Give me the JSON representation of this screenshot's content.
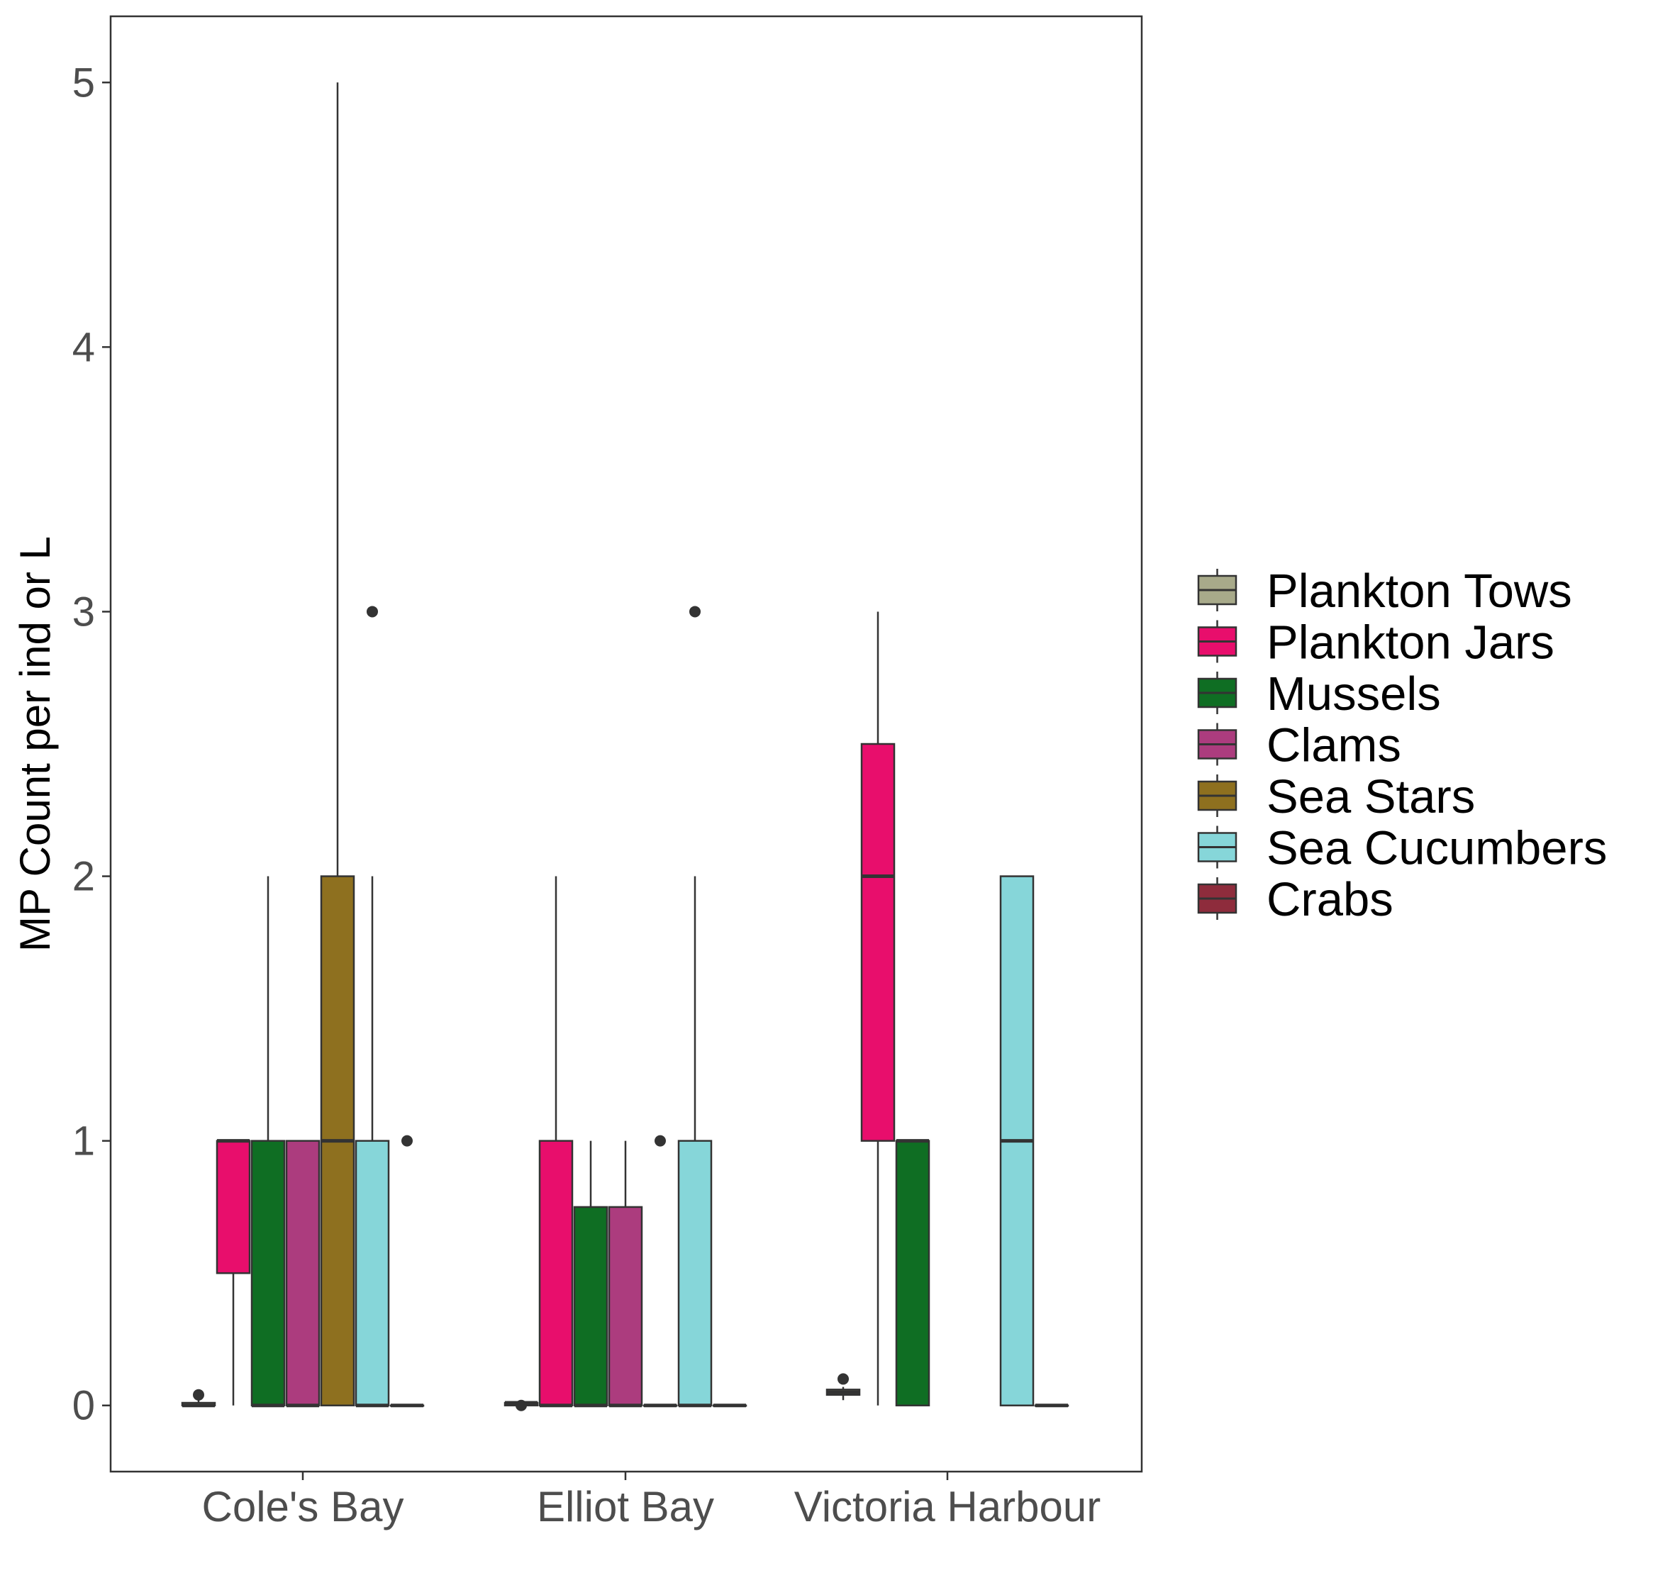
{
  "chart_data": {
    "type": "boxplot",
    "title": "",
    "xlabel": "",
    "ylabel": "MP Count per ind or L",
    "ylim": [
      -0.25,
      5.25
    ],
    "yticks": [
      "0",
      "1",
      "2",
      "3",
      "4",
      "5"
    ],
    "ytick_values": [
      0,
      1,
      2,
      3,
      4,
      5
    ],
    "categories": [
      "Cole's Bay",
      "Elliot Bay",
      "Victoria Harbour"
    ],
    "grid": false,
    "legend_position": "right",
    "series": [
      {
        "name": "Plankton Tows",
        "color": "#A8AA8A",
        "boxes": [
          {
            "min": 0.0,
            "q1": 0.0,
            "median": 0.0,
            "q3": 0.01,
            "max": 0.02,
            "outliers": [
              0.04
            ]
          },
          {
            "min": 0.0,
            "q1": 0.0,
            "median": 0.01,
            "q3": 0.01,
            "max": 0.02,
            "outliers": [
              0.0
            ]
          },
          {
            "min": 0.02,
            "q1": 0.04,
            "median": 0.05,
            "q3": 0.06,
            "max": 0.07,
            "outliers": [
              0.1
            ]
          }
        ]
      },
      {
        "name": "Plankton Jars",
        "color": "#E80E6C",
        "boxes": [
          {
            "min": 0.0,
            "q1": 0.5,
            "median": 1.0,
            "q3": 1.0,
            "max": 1.0,
            "outliers": []
          },
          {
            "min": 0.0,
            "q1": 0.0,
            "median": 0.0,
            "q3": 1.0,
            "max": 2.0,
            "outliers": []
          },
          {
            "min": 0.0,
            "q1": 1.0,
            "median": 2.0,
            "q3": 2.5,
            "max": 3.0,
            "outliers": []
          }
        ]
      },
      {
        "name": "Mussels",
        "color": "#0F6E23",
        "boxes": [
          {
            "min": 0.0,
            "q1": 0.0,
            "median": 0.0,
            "q3": 1.0,
            "max": 2.0,
            "outliers": []
          },
          {
            "min": 0.0,
            "q1": 0.0,
            "median": 0.0,
            "q3": 0.75,
            "max": 1.0,
            "outliers": []
          },
          {
            "min": 0.0,
            "q1": 0.0,
            "median": 1.0,
            "q3": 1.0,
            "max": 1.0,
            "outliers": []
          }
        ]
      },
      {
        "name": "Clams",
        "color": "#AC3C7E",
        "boxes": [
          {
            "min": 0.0,
            "q1": 0.0,
            "median": 0.0,
            "q3": 1.0,
            "max": 1.0,
            "outliers": []
          },
          {
            "min": 0.0,
            "q1": 0.0,
            "median": 0.0,
            "q3": 0.75,
            "max": 1.0,
            "outliers": []
          },
          null
        ]
      },
      {
        "name": "Sea Stars",
        "color": "#8E701F",
        "boxes": [
          {
            "min": 0.0,
            "q1": 0.0,
            "median": 1.0,
            "q3": 2.0,
            "max": 5.0,
            "outliers": []
          },
          {
            "min": 0.0,
            "q1": 0.0,
            "median": 0.0,
            "q3": 0.0,
            "max": 0.0,
            "outliers": [
              1.0
            ]
          },
          null
        ]
      },
      {
        "name": "Sea Cucumbers",
        "color": "#86D6D9",
        "boxes": [
          {
            "min": 0.0,
            "q1": 0.0,
            "median": 0.0,
            "q3": 1.0,
            "max": 2.0,
            "outliers": [
              3.0
            ]
          },
          {
            "min": 0.0,
            "q1": 0.0,
            "median": 0.0,
            "q3": 1.0,
            "max": 2.0,
            "outliers": [
              3.0
            ]
          },
          {
            "min": 0.0,
            "q1": 0.0,
            "median": 1.0,
            "q3": 2.0,
            "max": 2.0,
            "outliers": []
          }
        ]
      },
      {
        "name": "Crabs",
        "color": "#8E2C3C",
        "boxes": [
          {
            "min": 0.0,
            "q1": 0.0,
            "median": 0.0,
            "q3": 0.0,
            "max": 0.0,
            "outliers": [
              1.0
            ]
          },
          {
            "min": 0.0,
            "q1": 0.0,
            "median": 0.0,
            "q3": 0.0,
            "max": 0.0,
            "outliers": []
          },
          {
            "min": 0.0,
            "q1": 0.0,
            "median": 0.0,
            "q3": 0.0,
            "max": 0.0,
            "outliers": []
          }
        ]
      }
    ]
  }
}
